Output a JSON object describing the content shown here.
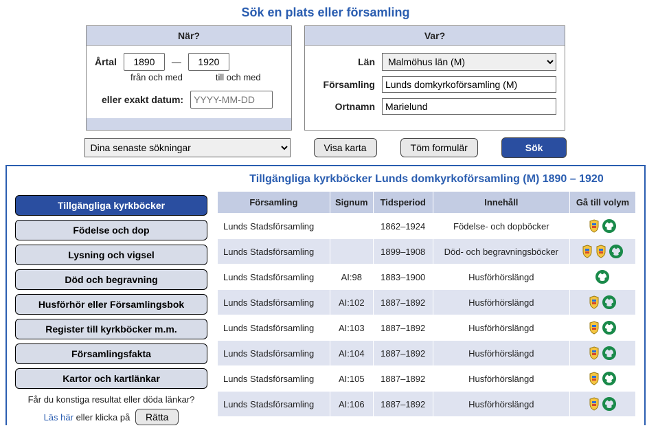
{
  "title": "Sök en plats eller församling",
  "panels": {
    "when": {
      "header": "När?",
      "year_label": "Årtal",
      "from_caption": "från och med",
      "to_caption": "till och med",
      "from_value": "1890",
      "to_value": "1920",
      "dash": "—",
      "exact_label": "eller exakt datum:",
      "exact_placeholder": "YYYY-MM-DD"
    },
    "where": {
      "header": "Var?",
      "county_label": "Län",
      "county_value": "Malmöhus län (M)",
      "parish_label": "Församling",
      "parish_value": "Lunds domkyrkoförsamling (M)",
      "place_label": "Ortnamn",
      "place_value": "Marielund"
    }
  },
  "actions": {
    "recent_label": "Dina senaste sökningar",
    "show_map": "Visa karta",
    "clear_form": "Töm formulär",
    "search": "Sök"
  },
  "sidebar": {
    "items": [
      "Tillgängliga kyrkböcker",
      "Födelse och dop",
      "Lysning och vigsel",
      "Död och begravning",
      "Husförhör eller Församlingsbok",
      "Register till kyrkböcker m.m.",
      "Församlingsfakta",
      "Kartor och kartlänkar"
    ],
    "active_index": 0,
    "note_line1": "Får du konstiga resultat eller döda länkar?",
    "note_link": "Läs här",
    "note_mid": " eller klicka på ",
    "note_button": "Rätta"
  },
  "results": {
    "title": "Tillgängliga kyrkböcker Lunds domkyrkoförsamling (M) 1890 – 1920",
    "columns": [
      "Församling",
      "Signum",
      "Tidsperiod",
      "Innehåll",
      "Gå till volym"
    ],
    "rows": [
      {
        "parish": "Lunds Stadsförsamling",
        "signum": "",
        "period": "1862–1924",
        "content": "Födelse- och dopböcker",
        "icons": [
          "shield",
          "ring"
        ]
      },
      {
        "parish": "Lunds Stadsförsamling",
        "signum": "",
        "period": "1899–1908",
        "content": "Död- och begravningsböcker",
        "icons": [
          "shield",
          "shield",
          "ring"
        ]
      },
      {
        "parish": "Lunds Stadsförsamling",
        "signum": "AI:98",
        "period": "1883–1900",
        "content": "Husförhörslängd",
        "icons": [
          "ring"
        ]
      },
      {
        "parish": "Lunds Stadsförsamling",
        "signum": "AI:102",
        "period": "1887–1892",
        "content": "Husförhörslängd",
        "icons": [
          "shield",
          "ring"
        ]
      },
      {
        "parish": "Lunds Stadsförsamling",
        "signum": "AI:103",
        "period": "1887–1892",
        "content": "Husförhörslängd",
        "icons": [
          "shield",
          "ring"
        ]
      },
      {
        "parish": "Lunds Stadsförsamling",
        "signum": "AI:104",
        "period": "1887–1892",
        "content": "Husförhörslängd",
        "icons": [
          "shield",
          "ring"
        ]
      },
      {
        "parish": "Lunds Stadsförsamling",
        "signum": "AI:105",
        "period": "1887–1892",
        "content": "Husförhörslängd",
        "icons": [
          "shield",
          "ring"
        ]
      },
      {
        "parish": "Lunds Stadsförsamling",
        "signum": "AI:106",
        "period": "1887–1892",
        "content": "Husförhörslängd",
        "icons": [
          "shield",
          "ring"
        ]
      }
    ]
  },
  "colors": {
    "accent": "#2a5db0",
    "panel_bg": "#cfd6e9",
    "button_primary": "#2a4ea0",
    "side_inactive": "#d7dce8",
    "header_cell": "#c3cce3",
    "odd_row": "#dfe3f0"
  }
}
